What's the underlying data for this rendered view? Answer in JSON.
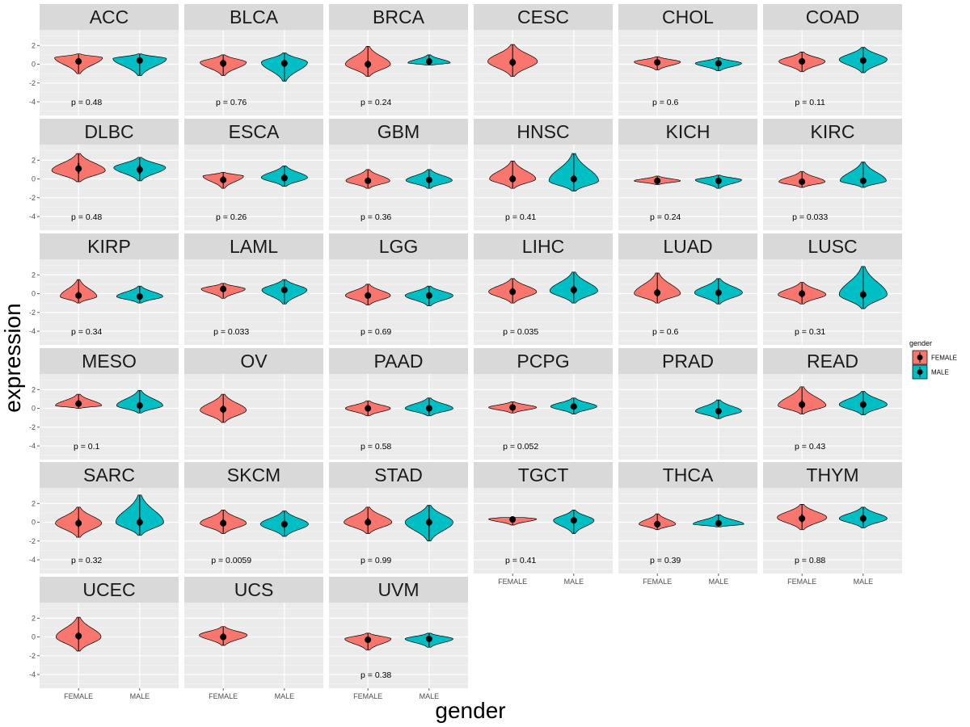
{
  "chart_data": {
    "type": "violin",
    "xlabel": "gender",
    "ylabel": "expression",
    "categories": [
      "FEMALE",
      "MALE"
    ],
    "y_ticks": [
      "2",
      "0",
      "-2",
      "-4"
    ],
    "ylim": [
      -5.2,
      3.4
    ],
    "legend": {
      "title": "gender",
      "position": "right",
      "entries": [
        {
          "label": "FEMALE",
          "color": "#F8766D"
        },
        {
          "label": "MALE",
          "color": "#00BFC4"
        }
      ]
    },
    "colors": {
      "FEMALE": "#F8766D",
      "MALE": "#00BFC4",
      "panel": "#EBEBEB",
      "strip": "#D9D9D9"
    },
    "panels": [
      {
        "name": "ACC",
        "p": "p = 0.48",
        "female": {
          "median": 0.3,
          "min": -1.0,
          "max": 1.1,
          "mode": 0.7,
          "width": 0.85,
          "q1": 0.0,
          "q3": 0.6
        },
        "male": {
          "median": 0.4,
          "min": -1.2,
          "max": 1.1,
          "mode": 0.6,
          "width": 0.95,
          "q1": 0.1,
          "q3": 0.7
        }
      },
      {
        "name": "BLCA",
        "p": "p = 0.76",
        "female": {
          "median": 0.1,
          "min": -1.2,
          "max": 1.0,
          "mode": 0.2,
          "width": 0.82,
          "q1": -0.3,
          "q3": 0.5
        },
        "male": {
          "median": 0.1,
          "min": -1.8,
          "max": 1.2,
          "mode": 0.2,
          "width": 0.82,
          "q1": -0.3,
          "q3": 0.5
        }
      },
      {
        "name": "BRCA",
        "p": "p = 0.24",
        "female": {
          "median": 0.0,
          "min": -1.3,
          "max": 1.9,
          "mode": 0.0,
          "width": 0.8,
          "q1": -0.4,
          "q3": 0.4
        },
        "male": {
          "median": 0.3,
          "min": -0.1,
          "max": 1.0,
          "mode": 0.15,
          "width": 0.75,
          "q1": 0.05,
          "q3": 0.55
        }
      },
      {
        "name": "CESC",
        "p": "",
        "female": {
          "median": 0.2,
          "min": -1.3,
          "max": 2.1,
          "mode": 0.3,
          "width": 0.88,
          "q1": -0.2,
          "q3": 0.6
        },
        "male": null
      },
      {
        "name": "CHOL",
        "p": "p = 0.6",
        "female": {
          "median": 0.2,
          "min": -0.6,
          "max": 0.8,
          "mode": 0.25,
          "width": 0.82,
          "q1": -0.05,
          "q3": 0.45
        },
        "male": {
          "median": 0.1,
          "min": -0.7,
          "max": 0.7,
          "mode": 0.1,
          "width": 0.82,
          "q1": -0.15,
          "q3": 0.35
        }
      },
      {
        "name": "COAD",
        "p": "p = 0.11",
        "female": {
          "median": 0.3,
          "min": -0.8,
          "max": 1.3,
          "mode": 0.3,
          "width": 0.82,
          "q1": -0.05,
          "q3": 0.65
        },
        "male": {
          "median": 0.4,
          "min": -0.9,
          "max": 1.8,
          "mode": 0.5,
          "width": 0.85,
          "q1": 0.05,
          "q3": 0.75
        }
      },
      {
        "name": "DLBC",
        "p": "p = 0.48",
        "female": {
          "median": 1.1,
          "min": -0.3,
          "max": 2.7,
          "mode": 0.9,
          "width": 0.95,
          "q1": 0.6,
          "q3": 1.7
        },
        "male": {
          "median": 1.0,
          "min": -0.2,
          "max": 2.3,
          "mode": 1.2,
          "width": 0.92,
          "q1": 0.5,
          "q3": 1.5
        }
      },
      {
        "name": "ESCA",
        "p": "p = 0.26",
        "female": {
          "median": -0.1,
          "min": -1.0,
          "max": 0.7,
          "mode": 0.3,
          "width": 0.72,
          "q1": -0.45,
          "q3": 0.3
        },
        "male": {
          "median": 0.1,
          "min": -0.8,
          "max": 1.4,
          "mode": 0.15,
          "width": 0.82,
          "q1": -0.25,
          "q3": 0.5
        }
      },
      {
        "name": "GBM",
        "p": "p = 0.36",
        "female": {
          "median": -0.2,
          "min": -1.0,
          "max": 1.0,
          "mode": -0.2,
          "width": 0.78,
          "q1": -0.5,
          "q3": 0.15
        },
        "male": {
          "median": -0.1,
          "min": -1.0,
          "max": 1.0,
          "mode": -0.15,
          "width": 0.82,
          "q1": -0.4,
          "q3": 0.2
        }
      },
      {
        "name": "HNSC",
        "p": "p = 0.41",
        "female": {
          "median": 0.0,
          "min": -1.0,
          "max": 1.9,
          "mode": 0.0,
          "width": 0.82,
          "q1": -0.35,
          "q3": 0.4
        },
        "male": {
          "median": 0.0,
          "min": -1.3,
          "max": 2.7,
          "mode": -0.2,
          "width": 0.88,
          "q1": -0.35,
          "q3": 0.4
        }
      },
      {
        "name": "KICH",
        "p": "p = 0.24",
        "female": {
          "median": -0.2,
          "min": -0.6,
          "max": 0.3,
          "mode": -0.2,
          "width": 0.82,
          "q1": -0.4,
          "q3": 0.0
        },
        "male": {
          "median": -0.2,
          "min": -1.0,
          "max": 0.4,
          "mode": -0.1,
          "width": 0.82,
          "q1": -0.45,
          "q3": 0.05
        }
      },
      {
        "name": "KIRC",
        "p": "p = 0.033",
        "female": {
          "median": -0.3,
          "min": -0.9,
          "max": 0.8,
          "mode": -0.3,
          "width": 0.82,
          "q1": -0.55,
          "q3": 0.0
        },
        "male": {
          "median": -0.2,
          "min": -0.9,
          "max": 1.8,
          "mode": -0.2,
          "width": 0.82,
          "q1": -0.45,
          "q3": 0.1
        }
      },
      {
        "name": "KIRP",
        "p": "p = 0.34",
        "female": {
          "median": -0.2,
          "min": -1.0,
          "max": 1.5,
          "mode": -0.3,
          "width": 0.65,
          "q1": -0.5,
          "q3": 0.2
        },
        "male": {
          "median": -0.3,
          "min": -1.0,
          "max": 0.8,
          "mode": -0.3,
          "width": 0.82,
          "q1": -0.55,
          "q3": 0.0
        }
      },
      {
        "name": "LAML",
        "p": "p = 0.033",
        "female": {
          "median": 0.5,
          "min": -0.5,
          "max": 1.1,
          "mode": 0.5,
          "width": 0.78,
          "q1": 0.25,
          "q3": 0.75
        },
        "male": {
          "median": 0.4,
          "min": -1.1,
          "max": 1.5,
          "mode": 0.4,
          "width": 0.8,
          "q1": 0.1,
          "q3": 0.7
        }
      },
      {
        "name": "LGG",
        "p": "p = 0.69",
        "female": {
          "median": -0.2,
          "min": -1.2,
          "max": 1.0,
          "mode": -0.2,
          "width": 0.8,
          "q1": -0.5,
          "q3": 0.15
        },
        "male": {
          "median": -0.2,
          "min": -1.3,
          "max": 0.8,
          "mode": -0.2,
          "width": 0.85,
          "q1": -0.5,
          "q3": 0.1
        }
      },
      {
        "name": "LIHC",
        "p": "p = 0.035",
        "female": {
          "median": 0.2,
          "min": -1.0,
          "max": 1.6,
          "mode": 0.2,
          "width": 0.85,
          "q1": -0.15,
          "q3": 0.6
        },
        "male": {
          "median": 0.4,
          "min": -1.0,
          "max": 2.3,
          "mode": 0.3,
          "width": 0.85,
          "q1": 0.0,
          "q3": 0.85
        }
      },
      {
        "name": "LUAD",
        "p": "p = 0.6",
        "female": {
          "median": 0.1,
          "min": -1.0,
          "max": 2.2,
          "mode": 0.0,
          "width": 0.82,
          "q1": -0.3,
          "q3": 0.5
        },
        "male": {
          "median": 0.1,
          "min": -1.1,
          "max": 1.6,
          "mode": 0.1,
          "width": 0.85,
          "q1": -0.3,
          "q3": 0.5
        }
      },
      {
        "name": "LUSC",
        "p": "p = 0.31",
        "female": {
          "median": 0.0,
          "min": -1.1,
          "max": 1.2,
          "mode": -0.1,
          "width": 0.85,
          "q1": -0.4,
          "q3": 0.4
        },
        "male": {
          "median": -0.1,
          "min": -1.6,
          "max": 2.9,
          "mode": -0.1,
          "width": 0.85,
          "q1": -0.5,
          "q3": 0.35
        }
      },
      {
        "name": "MESO",
        "p": "p = 0.1",
        "female": {
          "median": 0.5,
          "min": 0.0,
          "max": 1.5,
          "mode": 0.3,
          "width": 0.82,
          "q1": 0.25,
          "q3": 0.9
        },
        "male": {
          "median": 0.3,
          "min": -0.5,
          "max": 1.9,
          "mode": 0.3,
          "width": 0.82,
          "q1": -0.05,
          "q3": 0.65
        }
      },
      {
        "name": "OV",
        "p": "",
        "female": {
          "median": -0.1,
          "min": -1.5,
          "max": 1.5,
          "mode": -0.2,
          "width": 0.82,
          "q1": -0.5,
          "q3": 0.3
        },
        "male": null
      },
      {
        "name": "PAAD",
        "p": "p = 0.58",
        "female": {
          "median": 0.0,
          "min": -0.8,
          "max": 0.8,
          "mode": 0.0,
          "width": 0.8,
          "q1": -0.3,
          "q3": 0.3
        },
        "male": {
          "median": 0.0,
          "min": -0.8,
          "max": 1.1,
          "mode": 0.0,
          "width": 0.85,
          "q1": -0.3,
          "q3": 0.35
        }
      },
      {
        "name": "PCPG",
        "p": "p = 0.052",
        "female": {
          "median": 0.1,
          "min": -0.5,
          "max": 0.7,
          "mode": 0.1,
          "width": 0.85,
          "q1": -0.1,
          "q3": 0.35
        },
        "male": {
          "median": 0.2,
          "min": -0.6,
          "max": 1.1,
          "mode": 0.2,
          "width": 0.82,
          "q1": 0.0,
          "q3": 0.45
        }
      },
      {
        "name": "PRAD",
        "p": "",
        "female": null,
        "male": {
          "median": -0.3,
          "min": -1.1,
          "max": 0.9,
          "mode": -0.3,
          "width": 0.82,
          "q1": -0.55,
          "q3": -0.05
        }
      },
      {
        "name": "READ",
        "p": "p = 0.43",
        "female": {
          "median": 0.4,
          "min": -0.6,
          "max": 2.3,
          "mode": 0.3,
          "width": 0.85,
          "q1": 0.0,
          "q3": 0.85
        },
        "male": {
          "median": 0.4,
          "min": -0.7,
          "max": 1.8,
          "mode": 0.4,
          "width": 0.85,
          "q1": 0.05,
          "q3": 0.8
        }
      },
      {
        "name": "SARC",
        "p": "p = 0.32",
        "female": {
          "median": -0.1,
          "min": -1.6,
          "max": 1.6,
          "mode": -0.1,
          "width": 0.82,
          "q1": -0.5,
          "q3": 0.35
        },
        "male": {
          "median": 0.0,
          "min": -1.4,
          "max": 2.9,
          "mode": 0.0,
          "width": 0.85,
          "q1": -0.4,
          "q3": 0.5
        }
      },
      {
        "name": "SKCM",
        "p": "p = 0.0059",
        "female": {
          "median": -0.1,
          "min": -1.2,
          "max": 1.3,
          "mode": -0.1,
          "width": 0.82,
          "q1": -0.45,
          "q3": 0.3
        },
        "male": {
          "median": -0.2,
          "min": -1.5,
          "max": 1.2,
          "mode": -0.2,
          "width": 0.85,
          "q1": -0.55,
          "q3": 0.15
        }
      },
      {
        "name": "STAD",
        "p": "p = 0.99",
        "female": {
          "median": 0.0,
          "min": -1.2,
          "max": 1.6,
          "mode": 0.0,
          "width": 0.85,
          "q1": -0.35,
          "q3": 0.45
        },
        "male": {
          "median": 0.0,
          "min": -2.0,
          "max": 1.8,
          "mode": 0.0,
          "width": 0.85,
          "q1": -0.4,
          "q3": 0.45
        }
      },
      {
        "name": "TGCT",
        "p": "p = 0.41",
        "female": {
          "median": 0.3,
          "min": -0.3,
          "max": 0.5,
          "mode": 0.35,
          "width": 0.85,
          "q1": 0.15,
          "q3": 0.45
        },
        "male": {
          "median": 0.2,
          "min": -1.2,
          "max": 1.3,
          "mode": 0.2,
          "width": 0.72,
          "q1": -0.1,
          "q3": 0.55
        }
      },
      {
        "name": "THCA",
        "p": "p = 0.39",
        "female": {
          "median": -0.2,
          "min": -0.8,
          "max": 0.9,
          "mode": -0.2,
          "width": 0.65,
          "q1": -0.45,
          "q3": 0.05
        },
        "male": {
          "median": -0.1,
          "min": -0.5,
          "max": 0.8,
          "mode": -0.2,
          "width": 0.9,
          "q1": -0.3,
          "q3": 0.1
        }
      },
      {
        "name": "THYM",
        "p": "p = 0.88",
        "female": {
          "median": 0.4,
          "min": -0.8,
          "max": 1.9,
          "mode": 0.5,
          "width": 0.88,
          "q1": 0.0,
          "q3": 0.85
        },
        "male": {
          "median": 0.4,
          "min": -0.6,
          "max": 1.6,
          "mode": 0.4,
          "width": 0.85,
          "q1": 0.0,
          "q3": 0.8
        }
      },
      {
        "name": "UCEC",
        "p": "",
        "female": {
          "median": 0.1,
          "min": -1.5,
          "max": 2.1,
          "mode": 0.0,
          "width": 0.8,
          "q1": -0.3,
          "q3": 0.5
        },
        "male": null
      },
      {
        "name": "UCS",
        "p": "",
        "female": {
          "median": 0.0,
          "min": -0.9,
          "max": 1.1,
          "mode": 0.2,
          "width": 0.85,
          "q1": -0.3,
          "q3": 0.4
        },
        "male": null
      },
      {
        "name": "UVM",
        "p": "p = 0.38",
        "female": {
          "median": -0.3,
          "min": -1.4,
          "max": 0.4,
          "mode": -0.2,
          "width": 0.82,
          "q1": -0.55,
          "q3": 0.05
        },
        "male": {
          "median": -0.2,
          "min": -1.1,
          "max": 0.4,
          "mode": -0.2,
          "width": 0.85,
          "q1": -0.45,
          "q3": 0.05
        }
      }
    ]
  }
}
